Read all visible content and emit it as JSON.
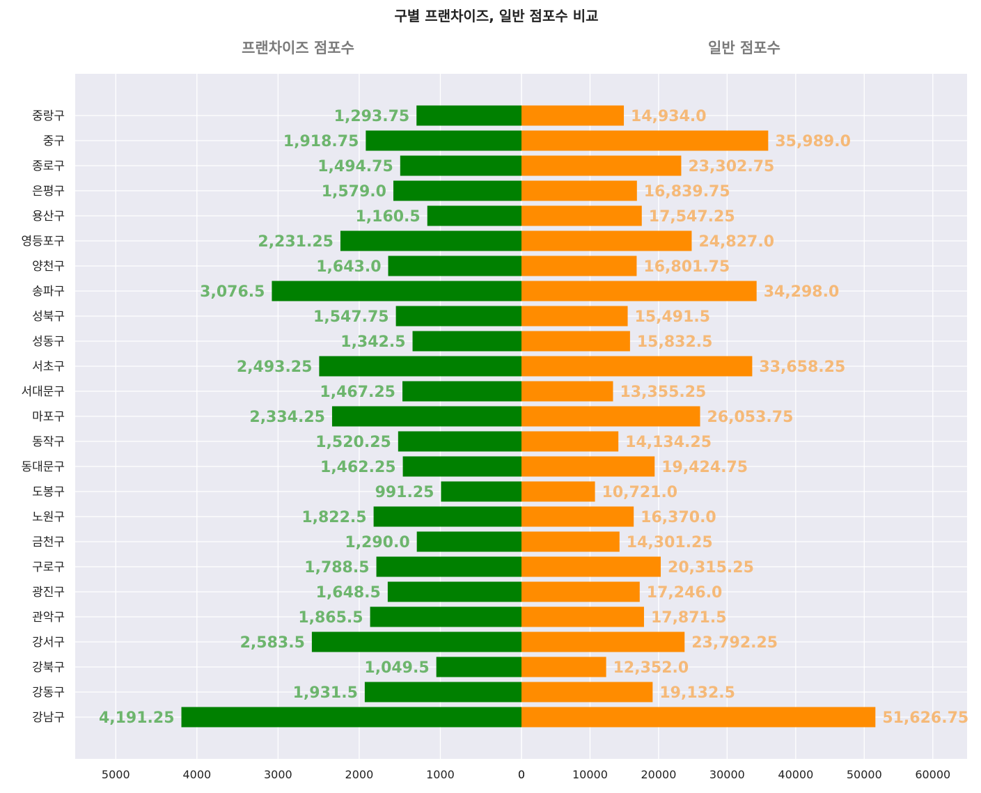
{
  "chart_data": {
    "type": "bar",
    "orientation": "horizontal-butterfly",
    "title": "구별 프랜차이즈, 일반 점포수 비교",
    "categories": [
      "중랑구",
      "중구",
      "종로구",
      "은평구",
      "용산구",
      "영등포구",
      "양천구",
      "송파구",
      "성북구",
      "성동구",
      "서초구",
      "서대문구",
      "마포구",
      "동작구",
      "동대문구",
      "도봉구",
      "노원구",
      "금천구",
      "구로구",
      "광진구",
      "관악구",
      "강서구",
      "강북구",
      "강동구",
      "강남구"
    ],
    "series": [
      {
        "name": "프랜차이즈 점포수",
        "color": "#008000",
        "label_color": "#6db56d",
        "side": "left",
        "xlim": [
          5500,
          0
        ],
        "ticks": [
          5000,
          4000,
          3000,
          2000,
          1000,
          0
        ],
        "values": [
          1293.75,
          1918.75,
          1494.75,
          1579.0,
          1160.5,
          2231.25,
          1643.0,
          3076.5,
          1547.75,
          1342.5,
          2493.25,
          1467.25,
          2334.25,
          1520.25,
          1462.25,
          991.25,
          1822.5,
          1290.0,
          1788.5,
          1648.5,
          1865.5,
          2583.5,
          1049.5,
          1931.5,
          4191.25
        ],
        "labels": [
          "1,293.75",
          "1,918.75",
          "1,494.75",
          "1,579.0",
          "1,160.5",
          "2,231.25",
          "1,643.0",
          "3,076.5",
          "1,547.75",
          "1,342.5",
          "2,493.25",
          "1,467.25",
          "2,334.25",
          "1,520.25",
          "1,462.25",
          "991.25",
          "1,822.5",
          "1,290.0",
          "1,788.5",
          "1,648.5",
          "1,865.5",
          "2,583.5",
          "1,049.5",
          "1,931.5",
          "4,191.25"
        ]
      },
      {
        "name": "일반 점포수",
        "color": "#ff8c00",
        "label_color": "#f5b978",
        "side": "right",
        "xlim": [
          0,
          65000
        ],
        "ticks": [
          0,
          10000,
          20000,
          30000,
          40000,
          50000,
          60000
        ],
        "values": [
          14934.0,
          35989.0,
          23302.75,
          16839.75,
          17547.25,
          24827.0,
          16801.75,
          34298.0,
          15491.5,
          15832.5,
          33658.25,
          13355.25,
          26053.75,
          14134.25,
          19424.75,
          10721.0,
          16370.0,
          14301.25,
          20315.25,
          17246.0,
          17871.5,
          23792.25,
          12352.0,
          19132.5,
          51626.75
        ],
        "labels": [
          "14,934.0",
          "35,989.0",
          "23,302.75",
          "16,839.75",
          "17,547.25",
          "24,827.0",
          "16,801.75",
          "34,298.0",
          "15,491.5",
          "15,832.5",
          "33,658.25",
          "13,355.25",
          "26,053.75",
          "14,134.25",
          "19,424.75",
          "10,721.0",
          "16,370.0",
          "14,301.25",
          "20,315.25",
          "17,246.0",
          "17,871.5",
          "23,792.25",
          "12,352.0",
          "19,132.5",
          "51,626.75"
        ]
      }
    ],
    "grid": true,
    "background": "#eaeaf2"
  }
}
